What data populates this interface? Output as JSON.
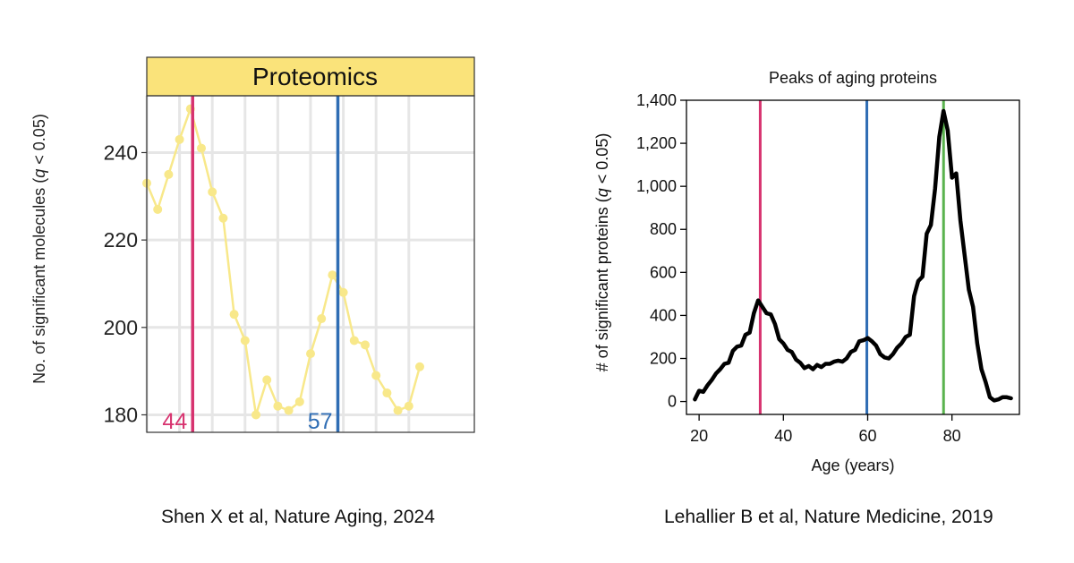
{
  "colors": {
    "line_left": "#f8e88a",
    "strip": "#fae37a",
    "marker_pink": "#d7336f",
    "marker_blue": "#2f6db4",
    "marker_green": "#5ab34e",
    "line_right": "#000000",
    "grid": "#e6e6e6"
  },
  "chart_data": [
    {
      "type": "line",
      "title": "Proteomics",
      "ylabel": "No. of significant molecules (q < 0.05)",
      "xlabel": "",
      "ylim": [
        176,
        253
      ],
      "yticks": [
        180,
        200,
        220,
        240
      ],
      "ytick_labels": [
        "180",
        "200",
        "220",
        "240"
      ],
      "xlim": [
        40,
        70
      ],
      "grid": true,
      "x": [
        40,
        41,
        42,
        43,
        44,
        45,
        46,
        47,
        48,
        49,
        50,
        51,
        52,
        53,
        54,
        55,
        56,
        57,
        58,
        59,
        60,
        61,
        62,
        63,
        64,
        65
      ],
      "values": [
        233,
        227,
        235,
        243,
        250,
        241,
        231,
        225,
        203,
        197,
        180,
        188,
        182,
        181,
        183,
        194,
        202,
        212,
        208,
        197,
        196,
        189,
        185,
        181,
        182,
        191
      ],
      "markers": [
        {
          "x": 44.2,
          "label": "44",
          "color": "pink"
        },
        {
          "x": 57.5,
          "label": "57",
          "color": "blue"
        }
      ]
    },
    {
      "type": "line",
      "title": "Peaks of aging proteins",
      "ylabel": "# of significant proteins (q < 0.05)",
      "xlabel": "Age (years)",
      "ylim": [
        -60,
        1400
      ],
      "yticks": [
        0,
        200,
        400,
        600,
        800,
        1000,
        1200,
        1400
      ],
      "ytick_labels": [
        "0",
        "200",
        "400",
        "600",
        "800",
        "1,000",
        "1,200",
        "1,400"
      ],
      "xlim": [
        17,
        96
      ],
      "xticks": [
        20,
        40,
        60,
        80
      ],
      "xtick_labels": [
        "20",
        "40",
        "60",
        "80"
      ],
      "grid": false,
      "x": [
        19,
        20,
        21,
        22,
        23,
        24,
        25,
        26,
        27,
        28,
        29,
        30,
        31,
        32,
        33,
        34,
        35,
        36,
        37,
        38,
        39,
        40,
        41,
        42,
        43,
        44,
        45,
        46,
        47,
        48,
        49,
        50,
        51,
        52,
        53,
        54,
        55,
        56,
        57,
        58,
        59,
        60,
        61,
        62,
        63,
        64,
        65,
        66,
        67,
        68,
        69,
        70,
        71,
        72,
        73,
        74,
        75,
        76,
        77,
        78,
        79,
        80,
        81,
        82,
        83,
        84,
        85,
        86,
        87,
        88,
        89,
        90,
        91,
        92,
        93,
        94
      ],
      "values": [
        10,
        50,
        45,
        75,
        100,
        130,
        150,
        175,
        180,
        235,
        255,
        260,
        310,
        320,
        410,
        470,
        440,
        410,
        405,
        360,
        290,
        270,
        240,
        230,
        195,
        180,
        155,
        165,
        150,
        170,
        160,
        175,
        175,
        185,
        190,
        185,
        200,
        230,
        240,
        280,
        285,
        295,
        280,
        260,
        220,
        205,
        200,
        220,
        250,
        270,
        300,
        310,
        490,
        560,
        580,
        780,
        820,
        990,
        1230,
        1350,
        1260,
        1040,
        1060,
        840,
        680,
        520,
        440,
        270,
        150,
        90,
        20,
        5,
        10,
        20,
        20,
        15
      ],
      "markers": [
        {
          "x": 34.5,
          "color": "pink"
        },
        {
          "x": 59.8,
          "color": "blue"
        },
        {
          "x": 78.0,
          "color": "green"
        }
      ]
    }
  ],
  "captions": {
    "left": "Shen X et al, Nature Aging, 2024",
    "right": "Lehallier B et al, Nature Medicine, 2019"
  }
}
